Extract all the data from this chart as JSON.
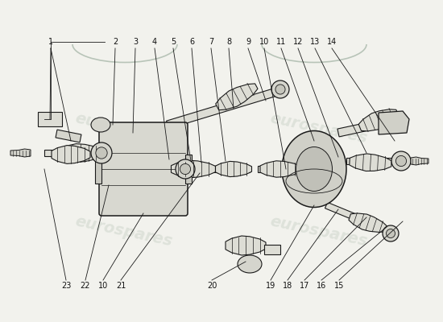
{
  "bg_color": "#f2f2ed",
  "line_color": "#1a1a1a",
  "part_fill": "#e8e8e2",
  "part_edge": "#1a1a1a",
  "watermark_color": "#b8c4b8",
  "label_fontsize": 7,
  "top_labels": [
    {
      "n": "1",
      "xf": 0.115,
      "yf": 0.87
    },
    {
      "n": "2",
      "xf": 0.26,
      "yf": 0.87
    },
    {
      "n": "3",
      "xf": 0.305,
      "yf": 0.87
    },
    {
      "n": "4",
      "xf": 0.348,
      "yf": 0.87
    },
    {
      "n": "5",
      "xf": 0.39,
      "yf": 0.87
    },
    {
      "n": "6",
      "xf": 0.432,
      "yf": 0.87
    },
    {
      "n": "7",
      "xf": 0.474,
      "yf": 0.87
    },
    {
      "n": "8",
      "xf": 0.516,
      "yf": 0.87
    },
    {
      "n": "9",
      "xf": 0.558,
      "yf": 0.87
    },
    {
      "n": "10",
      "xf": 0.596,
      "yf": 0.87
    },
    {
      "n": "11",
      "xf": 0.634,
      "yf": 0.87
    },
    {
      "n": "12",
      "xf": 0.672,
      "yf": 0.87
    },
    {
      "n": "13",
      "xf": 0.71,
      "yf": 0.87
    },
    {
      "n": "14",
      "xf": 0.748,
      "yf": 0.87
    }
  ],
  "bottom_labels": [
    {
      "n": "23",
      "xf": 0.148,
      "yf": 0.108
    },
    {
      "n": "22",
      "xf": 0.192,
      "yf": 0.108
    },
    {
      "n": "10",
      "xf": 0.232,
      "yf": 0.108
    },
    {
      "n": "21",
      "xf": 0.272,
      "yf": 0.108
    },
    {
      "n": "20",
      "xf": 0.478,
      "yf": 0.108
    },
    {
      "n": "19",
      "xf": 0.61,
      "yf": 0.108
    },
    {
      "n": "18",
      "xf": 0.648,
      "yf": 0.108
    },
    {
      "n": "17",
      "xf": 0.686,
      "yf": 0.108
    },
    {
      "n": "16",
      "xf": 0.724,
      "yf": 0.108
    },
    {
      "n": "15",
      "xf": 0.762,
      "yf": 0.108
    }
  ]
}
